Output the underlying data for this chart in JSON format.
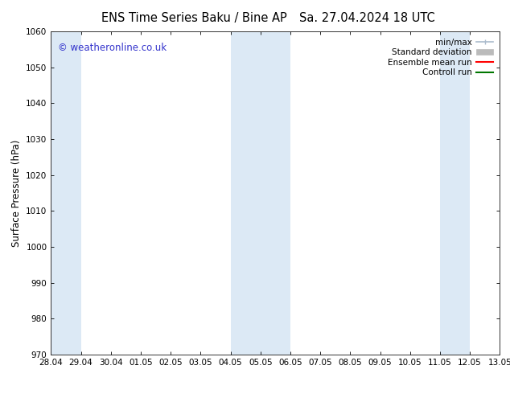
{
  "title_left": "ENS Time Series Baku / Bine AP",
  "title_right": "Sa. 27.04.2024 18 UTC",
  "ylabel": "Surface Pressure (hPa)",
  "ylim": [
    970,
    1060
  ],
  "yticks": [
    970,
    980,
    990,
    1000,
    1010,
    1020,
    1030,
    1040,
    1050,
    1060
  ],
  "x_tick_labels": [
    "28.04",
    "29.04",
    "30.04",
    "01.05",
    "02.05",
    "03.05",
    "04.05",
    "05.05",
    "06.05",
    "07.05",
    "08.05",
    "09.05",
    "10.05",
    "11.05",
    "12.05",
    "13.05"
  ],
  "x_tick_positions": [
    0,
    1,
    2,
    3,
    4,
    5,
    6,
    7,
    8,
    9,
    10,
    11,
    12,
    13,
    14,
    15
  ],
  "shaded_bands": [
    {
      "xmin": 0,
      "xmax": 1
    },
    {
      "xmin": 6,
      "xmax": 8
    },
    {
      "xmin": 13,
      "xmax": 14
    }
  ],
  "band_color": "#dce9f5",
  "background_color": "#ffffff",
  "watermark_text": "© weatheronline.co.uk",
  "watermark_color": "#3333cc",
  "legend_items": [
    {
      "label": "min/max",
      "color": "#aabbcc",
      "type": "minmax"
    },
    {
      "label": "Standard deviation",
      "color": "#bbbbbb",
      "type": "stddev"
    },
    {
      "label": "Ensemble mean run",
      "color": "#ff0000",
      "type": "line"
    },
    {
      "label": "Controll run",
      "color": "#007700",
      "type": "line"
    }
  ],
  "title_fontsize": 10.5,
  "axis_label_fontsize": 8.5,
  "tick_fontsize": 7.5,
  "legend_fontsize": 7.5,
  "watermark_fontsize": 8.5
}
